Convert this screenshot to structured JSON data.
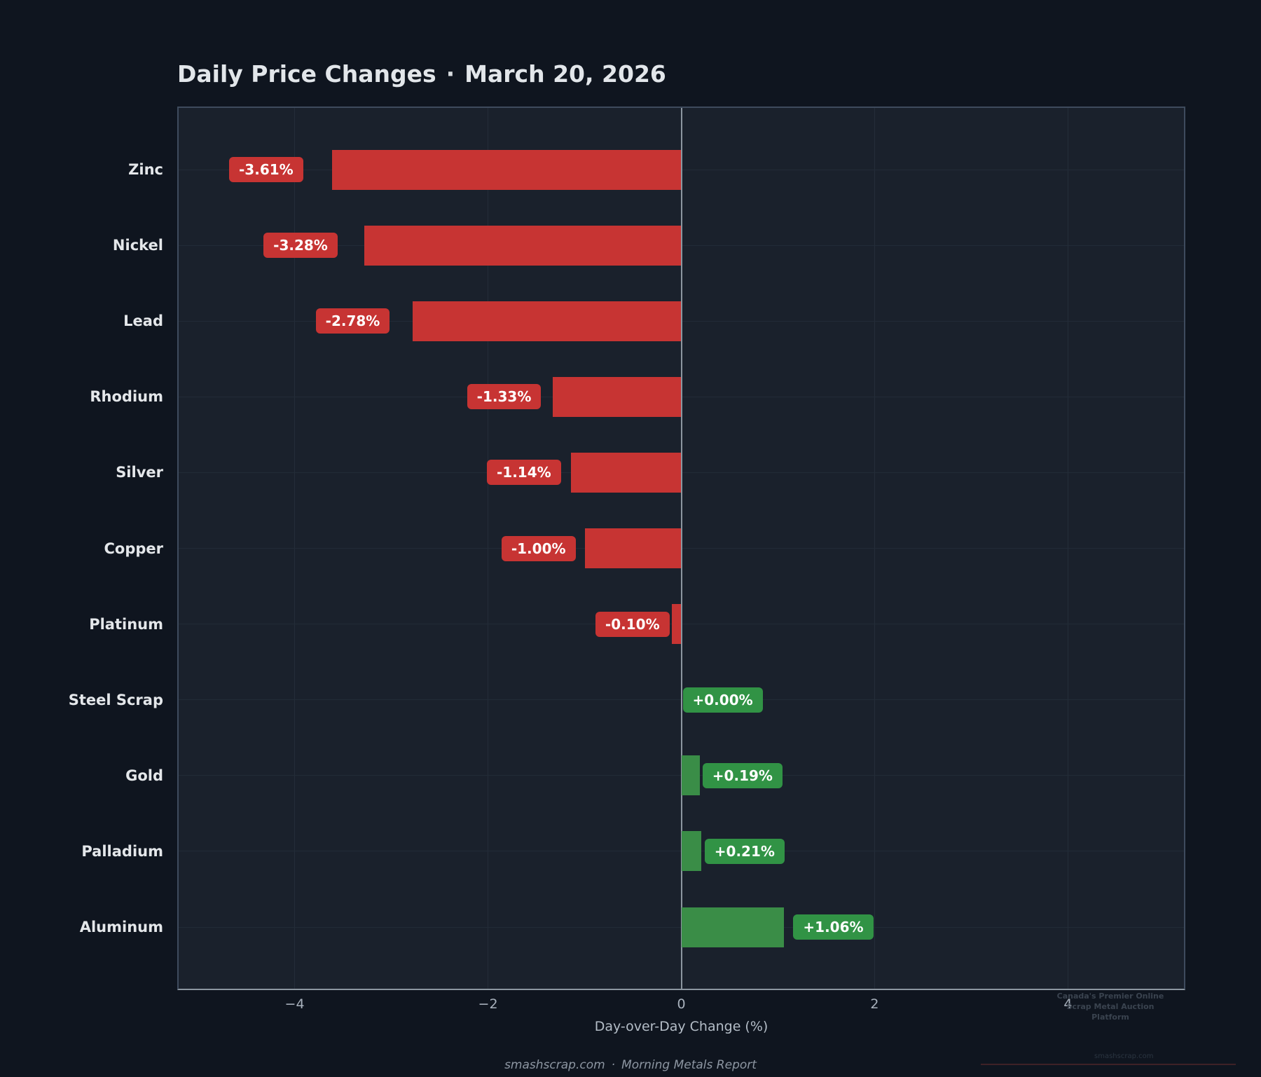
{
  "page": {
    "title": "Daily Price Changes",
    "title_separator": "·",
    "title_date": "March 20, 2026",
    "footer_site": "smashscrap.com",
    "footer_separator": "·",
    "footer_report": "Morning Metals Report",
    "watermark_line1": "Canada's Premier Online",
    "watermark_line2": "Scrap Metal Auction Platform",
    "watermark_site": "smashscrap.com"
  },
  "chart_data": {
    "type": "bar",
    "orientation": "horizontal",
    "title": "Daily Price Changes · March 20, 2026",
    "categories": [
      "Zinc",
      "Nickel",
      "Lead",
      "Rhodium",
      "Silver",
      "Copper",
      "Platinum",
      "Steel Scrap",
      "Gold",
      "Palladium",
      "Aluminum"
    ],
    "values": [
      -3.61,
      -3.28,
      -2.78,
      -1.33,
      -1.14,
      -1.0,
      -0.1,
      0.0,
      0.19,
      0.21,
      1.06
    ],
    "bar_labels": [
      "-3.61%",
      "-3.28%",
      "-2.78%",
      "-1.33%",
      "-1.14%",
      "-1.00%",
      "-0.10%",
      "+0.00%",
      "+0.19%",
      "+0.21%",
      "+1.06%"
    ],
    "xlabel": "Day-over-Day Change (%)",
    "xticks": [
      -4,
      -2,
      0,
      2,
      4
    ],
    "xtick_labels": [
      "−4",
      "−2",
      "0",
      "2",
      "4"
    ],
    "xlim": [
      -5.2,
      5.2
    ],
    "grid": true,
    "legend": "none",
    "colors": {
      "negative": "#c73433",
      "positive": "#3a8d47",
      "zero_line": "#8c96a0",
      "grid": "#242d39",
      "plot_background": "#1a212c",
      "page_background": "#0f151f"
    }
  }
}
